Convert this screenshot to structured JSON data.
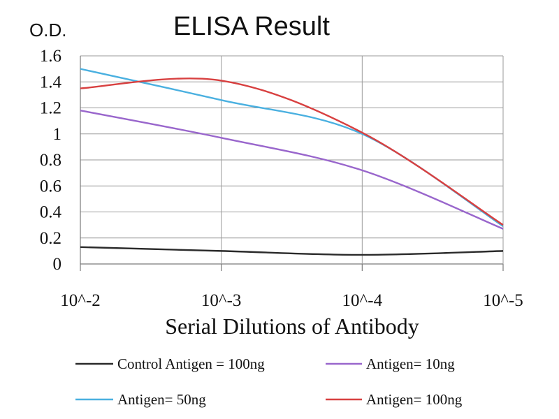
{
  "chart_data": {
    "type": "line",
    "title": "ELISA Result",
    "ylabel": "O.D.",
    "xlabel": "Serial Dilutions of Antibody",
    "categories": [
      "10^-2",
      "10^-3",
      "10^-4",
      "10^-5"
    ],
    "ylim": [
      0,
      1.6
    ],
    "yticks": [
      "0",
      "0.2",
      "0.4",
      "0.6",
      "0.8",
      "1",
      "1.2",
      "1.4",
      "1.6"
    ],
    "grid": true,
    "legend_position": "bottom",
    "series": [
      {
        "name": "Control Antigen = 100ng",
        "color": "#2a2a2a",
        "values": [
          0.13,
          0.1,
          0.07,
          0.1
        ]
      },
      {
        "name": "Antigen= 10ng",
        "color": "#9966cc",
        "values": [
          1.18,
          0.97,
          0.72,
          0.27
        ]
      },
      {
        "name": "Antigen= 50ng",
        "color": "#4ab0e0",
        "values": [
          1.5,
          1.26,
          1.0,
          0.29
        ]
      },
      {
        "name": "Antigen= 100ng",
        "color": "#d84040",
        "values": [
          1.35,
          1.41,
          1.01,
          0.3
        ]
      }
    ]
  }
}
